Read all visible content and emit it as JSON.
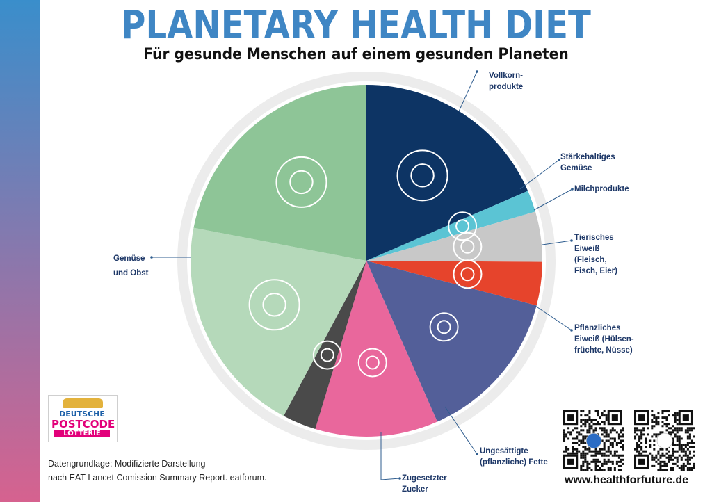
{
  "header": {
    "title": "PLANETARY HEALTH DIET",
    "subtitle": "Für gesunde Menschen auf einem gesunden Planeten"
  },
  "colors": {
    "title": "#3f86c4",
    "sidebar_top": "#3a8ecb",
    "sidebar_bottom": "#d6628f",
    "ring": "#e6e6e6",
    "leader_line": "#2f5d8f"
  },
  "chart_data": {
    "type": "pie",
    "title": "PLANETARY HEALTH DIET",
    "subtitle": "Für gesunde Menschen auf einem gesunden Planeten",
    "start_angle_deg": 0,
    "direction": "clockwise",
    "slices": [
      {
        "label": "Vollkornprodukte",
        "value": 18.5,
        "color": "#0d3464",
        "icon": "wheat-icon"
      },
      {
        "label": "Stärkehaltiges Gemüse",
        "value": 2.0,
        "color": "#5bc4d4",
        "icon": "potato-icon"
      },
      {
        "label": "Milchprodukte",
        "value": 4.6,
        "color": "#c8c8c8",
        "icon": "milk-icon"
      },
      {
        "label": "Tierisches Eiweiß (Fleisch, Fisch, Eier)",
        "value": 4.0,
        "color": "#e6442c",
        "icon": "cow-icon"
      },
      {
        "label": "Pflanzliches Eiweiß (Hülsenfrüchte, Nüsse)",
        "value": 14.3,
        "color": "#535f99",
        "icon": "beans-icon"
      },
      {
        "label": "Ungesättigte (pflanzliche) Fette",
        "value": 11.3,
        "color": "#e9679c",
        "icon": "oil-icon"
      },
      {
        "label": "Zugesetzter Zucker",
        "value": 3.1,
        "color": "#4a4a4a",
        "icon": "sugar-icon"
      },
      {
        "label": "Obst",
        "value": 20.2,
        "color": "#b5d9ba",
        "icon": "fruit-icon"
      },
      {
        "label": "Gemüse",
        "value": 22.0,
        "color": "#8ec597",
        "icon": "vegetable-icon"
      }
    ]
  },
  "labels": {
    "vollkorn_1": "Vollkorn-",
    "vollkorn_2": "produkte",
    "staerke_1": "Stärkehaltiges",
    "staerke_2": "Gemüse",
    "milch": "Milchprodukte",
    "tier_1": "Tierisches",
    "tier_2": "Eiweiß",
    "tier_3": "(Fleisch,",
    "tier_4": "Fisch, Eier)",
    "pflanz_1": "Pflanzliches",
    "pflanz_2": "Eiweiß (Hülsen-",
    "pflanz_3": "früchte, Nüsse)",
    "fette_1": "Ungesättigte",
    "fette_2": "(pflanzliche) Fette",
    "zucker_1": "Zugesetzter",
    "zucker_2": "Zucker",
    "gemuese_1": "Gemüse",
    "gemuese_2": "und Obst"
  },
  "logo": {
    "line1": "DEUTSCHE",
    "line2": "POSTCODE",
    "line3": "LOTTERIE"
  },
  "footer": {
    "source_line1": "Datengrundlage: Modifizierte Darstellung",
    "source_line2": "nach EAT-Lancet Comission Summary Report. eatforum.",
    "website": "www.healthforfuture.de"
  }
}
